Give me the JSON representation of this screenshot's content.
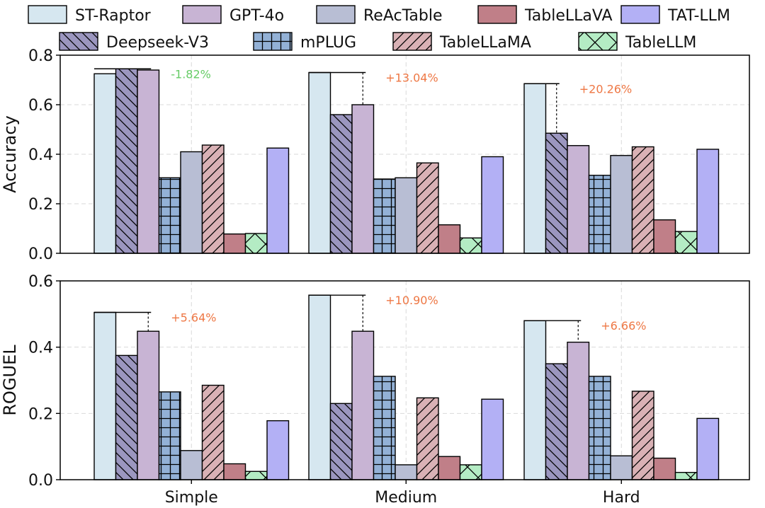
{
  "colors": {
    "ST-Raptor": "#d6e7f0",
    "Deepseek-V3": "#9b96bf",
    "GPT-4o": "#c8b4d4",
    "mPLUG": "#93b1d6",
    "ReAcTable": "#b8bed4",
    "TableLLaMA": "#d9b1b5",
    "TableLLaVA": "#c07f88",
    "TableLLM": "#b4ecc4",
    "TAT-LLM": "#b3b0f5",
    "positive_annotation": "#ee7744",
    "negative_annotation": "#66cc66"
  },
  "chart_data": [
    {
      "type": "bar",
      "ylabel": "Accuracy",
      "ylim": [
        0,
        0.8
      ],
      "yticks": [
        "0.0",
        "0.2",
        "0.4",
        "0.6",
        "0.8"
      ],
      "categories": [
        "Simple",
        "Medium",
        "Hard"
      ],
      "grid": true,
      "series": [
        {
          "name": "ST-Raptor",
          "pattern": "none",
          "values": [
            0.725,
            0.73,
            0.685
          ]
        },
        {
          "name": "Deepseek-V3",
          "pattern": "backslash",
          "values": [
            0.745,
            0.56,
            0.485
          ]
        },
        {
          "name": "GPT-4o",
          "pattern": "none",
          "values": [
            0.74,
            0.6,
            0.435
          ]
        },
        {
          "name": "mPLUG",
          "pattern": "grid",
          "values": [
            0.305,
            0.3,
            0.315
          ]
        },
        {
          "name": "ReAcTable",
          "pattern": "none",
          "values": [
            0.41,
            0.305,
            0.395
          ]
        },
        {
          "name": "TableLLaMA",
          "pattern": "slash",
          "values": [
            0.437,
            0.365,
            0.43
          ]
        },
        {
          "name": "TableLLaVA",
          "pattern": "none",
          "values": [
            0.078,
            0.115,
            0.135
          ]
        },
        {
          "name": "TableLLM",
          "pattern": "x",
          "values": [
            0.08,
            0.062,
            0.088
          ]
        },
        {
          "name": "TAT-LLM",
          "pattern": "none",
          "values": [
            0.425,
            0.39,
            0.42
          ]
        }
      ],
      "annotations": [
        {
          "category": "Simple",
          "text": "-1.82%",
          "sign": "negative",
          "from_series": "ST-Raptor",
          "to_series": "GPT-4o",
          "y_top": 0.745
        },
        {
          "category": "Medium",
          "text": "+13.04%",
          "sign": "positive",
          "from_series": "ST-Raptor",
          "to_series": "GPT-4o",
          "y_top": 0.73
        },
        {
          "category": "Hard",
          "text": "+20.26%",
          "sign": "positive",
          "from_series": "ST-Raptor",
          "to_series": "Deepseek-V3",
          "y_top": 0.685
        }
      ]
    },
    {
      "type": "bar",
      "ylabel": "ROGUEL",
      "ylim": [
        0,
        0.6
      ],
      "yticks": [
        "0.0",
        "0.2",
        "0.4",
        "0.6"
      ],
      "categories": [
        "Simple",
        "Medium",
        "Hard"
      ],
      "grid": true,
      "series": [
        {
          "name": "ST-Raptor",
          "pattern": "none",
          "values": [
            0.505,
            0.557,
            0.48
          ]
        },
        {
          "name": "Deepseek-V3",
          "pattern": "backslash",
          "values": [
            0.375,
            0.23,
            0.35
          ]
        },
        {
          "name": "GPT-4o",
          "pattern": "none",
          "values": [
            0.448,
            0.448,
            0.415
          ]
        },
        {
          "name": "mPLUG",
          "pattern": "grid",
          "values": [
            0.265,
            0.312,
            0.312
          ]
        },
        {
          "name": "ReAcTable",
          "pattern": "none",
          "values": [
            0.088,
            0.045,
            0.072
          ]
        },
        {
          "name": "TableLLaMA",
          "pattern": "slash",
          "values": [
            0.285,
            0.247,
            0.267
          ]
        },
        {
          "name": "TableLLaVA",
          "pattern": "none",
          "values": [
            0.048,
            0.07,
            0.065
          ]
        },
        {
          "name": "TableLLM",
          "pattern": "x",
          "values": [
            0.025,
            0.045,
            0.022
          ]
        },
        {
          "name": "TAT-LLM",
          "pattern": "none",
          "values": [
            0.178,
            0.243,
            0.185
          ]
        }
      ],
      "annotations": [
        {
          "category": "Simple",
          "text": "+5.64%",
          "sign": "positive",
          "from_series": "ST-Raptor",
          "to_series": "GPT-4o",
          "y_top": 0.505
        },
        {
          "category": "Medium",
          "text": "+10.90%",
          "sign": "positive",
          "from_series": "ST-Raptor",
          "to_series": "GPT-4o",
          "y_top": 0.557
        },
        {
          "category": "Hard",
          "text": "+6.66%",
          "sign": "positive",
          "from_series": "ST-Raptor",
          "to_series": "GPT-4o",
          "y_top": 0.48
        }
      ]
    }
  ],
  "legend": {
    "rows": [
      [
        "ST-Raptor",
        "GPT-4o",
        "ReAcTable",
        "TableLLaVA",
        "TAT-LLM"
      ],
      [
        "Deepseek-V3",
        "mPLUG",
        "TableLLaMA",
        "TableLLM"
      ]
    ]
  }
}
